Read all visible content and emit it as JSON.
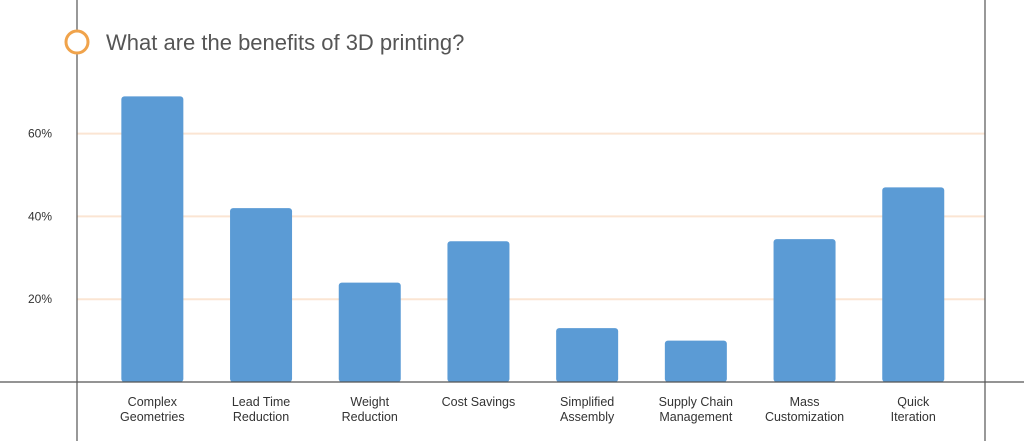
{
  "chart_data": {
    "type": "bar",
    "title": "What are the benefits of 3D printing?",
    "categories": [
      [
        "Complex",
        "Geometries"
      ],
      [
        "Lead Time",
        "Reduction"
      ],
      [
        "Weight",
        "Reduction"
      ],
      [
        "Cost Savings"
      ],
      [
        "Simplified",
        "Assembly"
      ],
      [
        "Supply Chain",
        "Management"
      ],
      [
        "Mass",
        "Customization"
      ],
      [
        "Quick",
        "Iteration"
      ]
    ],
    "values": [
      69,
      42,
      24,
      34,
      13,
      10,
      34.5,
      47
    ],
    "y_ticks": [
      {
        "value": 20,
        "label": "20%"
      },
      {
        "value": 40,
        "label": "40%"
      },
      {
        "value": 60,
        "label": "60%"
      }
    ],
    "ylim": [
      0,
      80
    ],
    "xlabel": "",
    "ylabel": "",
    "grid": true,
    "colors": {
      "bar": "#5b9bd5",
      "gridline": "#fbe5d3",
      "axis": "#555555",
      "title_marker": "#f0a34b"
    }
  }
}
